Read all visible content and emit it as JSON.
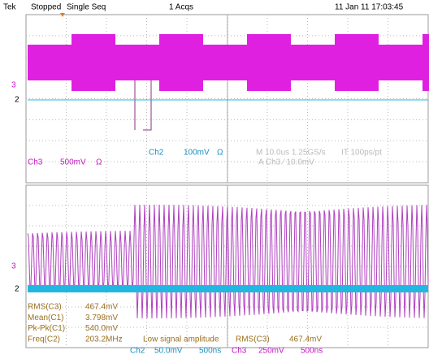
{
  "header": {
    "brand": "Tek",
    "status": "Stopped",
    "mode": "Single Seq",
    "acqs": "1 Acqs",
    "datetime": "11 Jan 11 17:03:45"
  },
  "upper_panel": {
    "markers": [
      "3",
      "2"
    ],
    "ch3": {
      "label": "Ch3",
      "scale": "500mV",
      "unit": "Ω"
    },
    "ch2": {
      "label": "Ch2",
      "scale": "100mV",
      "unit": "Ω"
    },
    "timebase": "M 10.0us 1.25GS/s",
    "resolution": "IT 100ps/pt",
    "trigger": "A  Ch3  ⁄  10.0mV"
  },
  "lower_panel": {
    "markers": [
      "3",
      "2"
    ],
    "measurements": [
      {
        "name": "RMS(C3)",
        "value": "467.4mV"
      },
      {
        "name": "Mean(C1)",
        "value": "3.798mV"
      },
      {
        "name": "Pk-Pk(C1)",
        "value": "540.0mV"
      },
      {
        "name": "Freq(C2)",
        "value": "203.2MHz"
      }
    ],
    "warning": "Low signal amplitude",
    "extra": {
      "name": "RMS(C3)",
      "value": "467.4mV"
    },
    "footer": [
      "Ch2",
      "50.0mV",
      "500ns",
      "Ch3",
      "250mV",
      "500ns"
    ]
  }
}
